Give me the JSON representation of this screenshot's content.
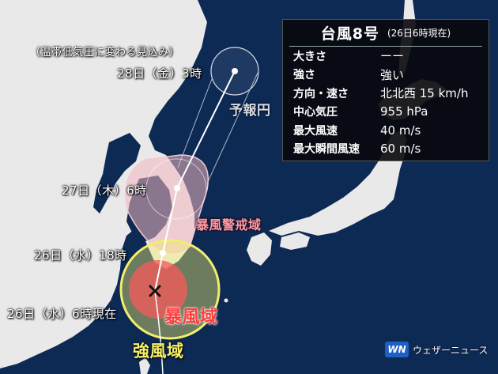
{
  "colors": {
    "sea": "#0d2a55",
    "land": "#e9e9e9",
    "storm_warning_area": "#f2b7c0",
    "storm_area": "#f25c5c",
    "strong_wind_area": "#f2ee6b",
    "track": "#ffffff"
  },
  "icons": {
    "center": "x-mark-icon",
    "position": "dot-marker-icon"
  },
  "labels": {
    "expected_extratropical": "（温帯低気圧に変わる見込み）",
    "pos_28": "28日（金）3時",
    "pos_27": "27日（木）6時",
    "pos_26_18": "26日（水）18時",
    "pos_26_now": "26日（水）6時現在",
    "forecast_circle": "予報円",
    "storm_warning_area": "暴風警戒域",
    "storm_area": "暴風域",
    "strong_wind_area": "強風域"
  },
  "panel": {
    "title": "台風8号",
    "subtitle": "(26日6時現在)",
    "rows": [
      {
        "k": "大きさ",
        "v": "ーー"
      },
      {
        "k": "強さ",
        "v": "強い"
      },
      {
        "k": "方向・速さ",
        "v": "北北西 15 km/h"
      },
      {
        "k": "中心気圧",
        "v": "955 hPa"
      },
      {
        "k": "最大風速",
        "v": "40 m/s"
      },
      {
        "k": "最大瞬間風速",
        "v": "60 m/s"
      }
    ]
  },
  "brand": {
    "mark": "WN",
    "name": "ウェザーニュース"
  }
}
